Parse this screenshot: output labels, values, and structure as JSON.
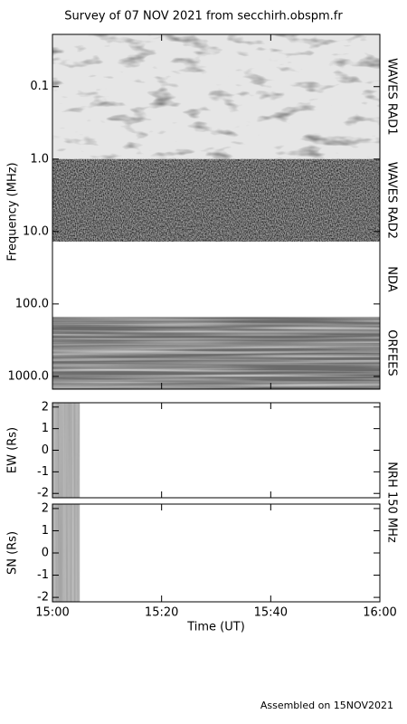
{
  "title": "Survey of 07 NOV 2021 from secchirh.obspm.fr",
  "footer": "Assembled on 15NOV2021",
  "chart_data": [
    {
      "type": "spectrogram",
      "ylabel": "Frequency (MHz)",
      "log_scale": true,
      "y_inverted": true,
      "ylim": [
        0.019,
        1500
      ],
      "yticks": [
        0.1,
        {
          "value": 1,
          "label": "1.0"
        },
        {
          "value": 10,
          "label": "10.0"
        },
        {
          "value": 100,
          "label": "100.0"
        },
        {
          "value": 1000,
          "label": "1000.0"
        }
      ],
      "xlim": [
        "15:00",
        "16:00"
      ],
      "bands": [
        {
          "name": "WAVES RAD1",
          "range": [
            0.019,
            1
          ],
          "color": "#e6e6e6"
        },
        {
          "name": "WAVES RAD2",
          "range": [
            1,
            13.8
          ],
          "color": "#9a9a9a"
        },
        {
          "name": "NDA",
          "range": [
            13.8,
            150
          ],
          "color": "#ffffff"
        },
        {
          "name": "ORFEES",
          "range": [
            150,
            1500
          ],
          "color": "#6a6a6a"
        }
      ]
    },
    {
      "type": "position",
      "ylabel": "EW (Rs)",
      "ylim": [
        -2.2,
        2.2
      ],
      "yticks": [
        -2,
        -1,
        0,
        1,
        2
      ],
      "xlim": [
        "15:00",
        "16:00"
      ],
      "coverage": [
        "15:00",
        "15:05"
      ],
      "color": "#8c8c8c",
      "right_label": "NRH 150 MHz"
    },
    {
      "type": "position",
      "ylabel": "SN (Rs)",
      "ylim": [
        -2.2,
        2.2
      ],
      "yticks": [
        -2,
        -1,
        0,
        1,
        2
      ],
      "xlim": [
        "15:00",
        "16:00"
      ],
      "coverage": [
        "15:00",
        "15:05"
      ],
      "color": "#8c8c8c",
      "xlabel": "Time (UT)",
      "xticks": [
        "15:00",
        "15:20",
        "15:40",
        "16:00"
      ]
    }
  ]
}
